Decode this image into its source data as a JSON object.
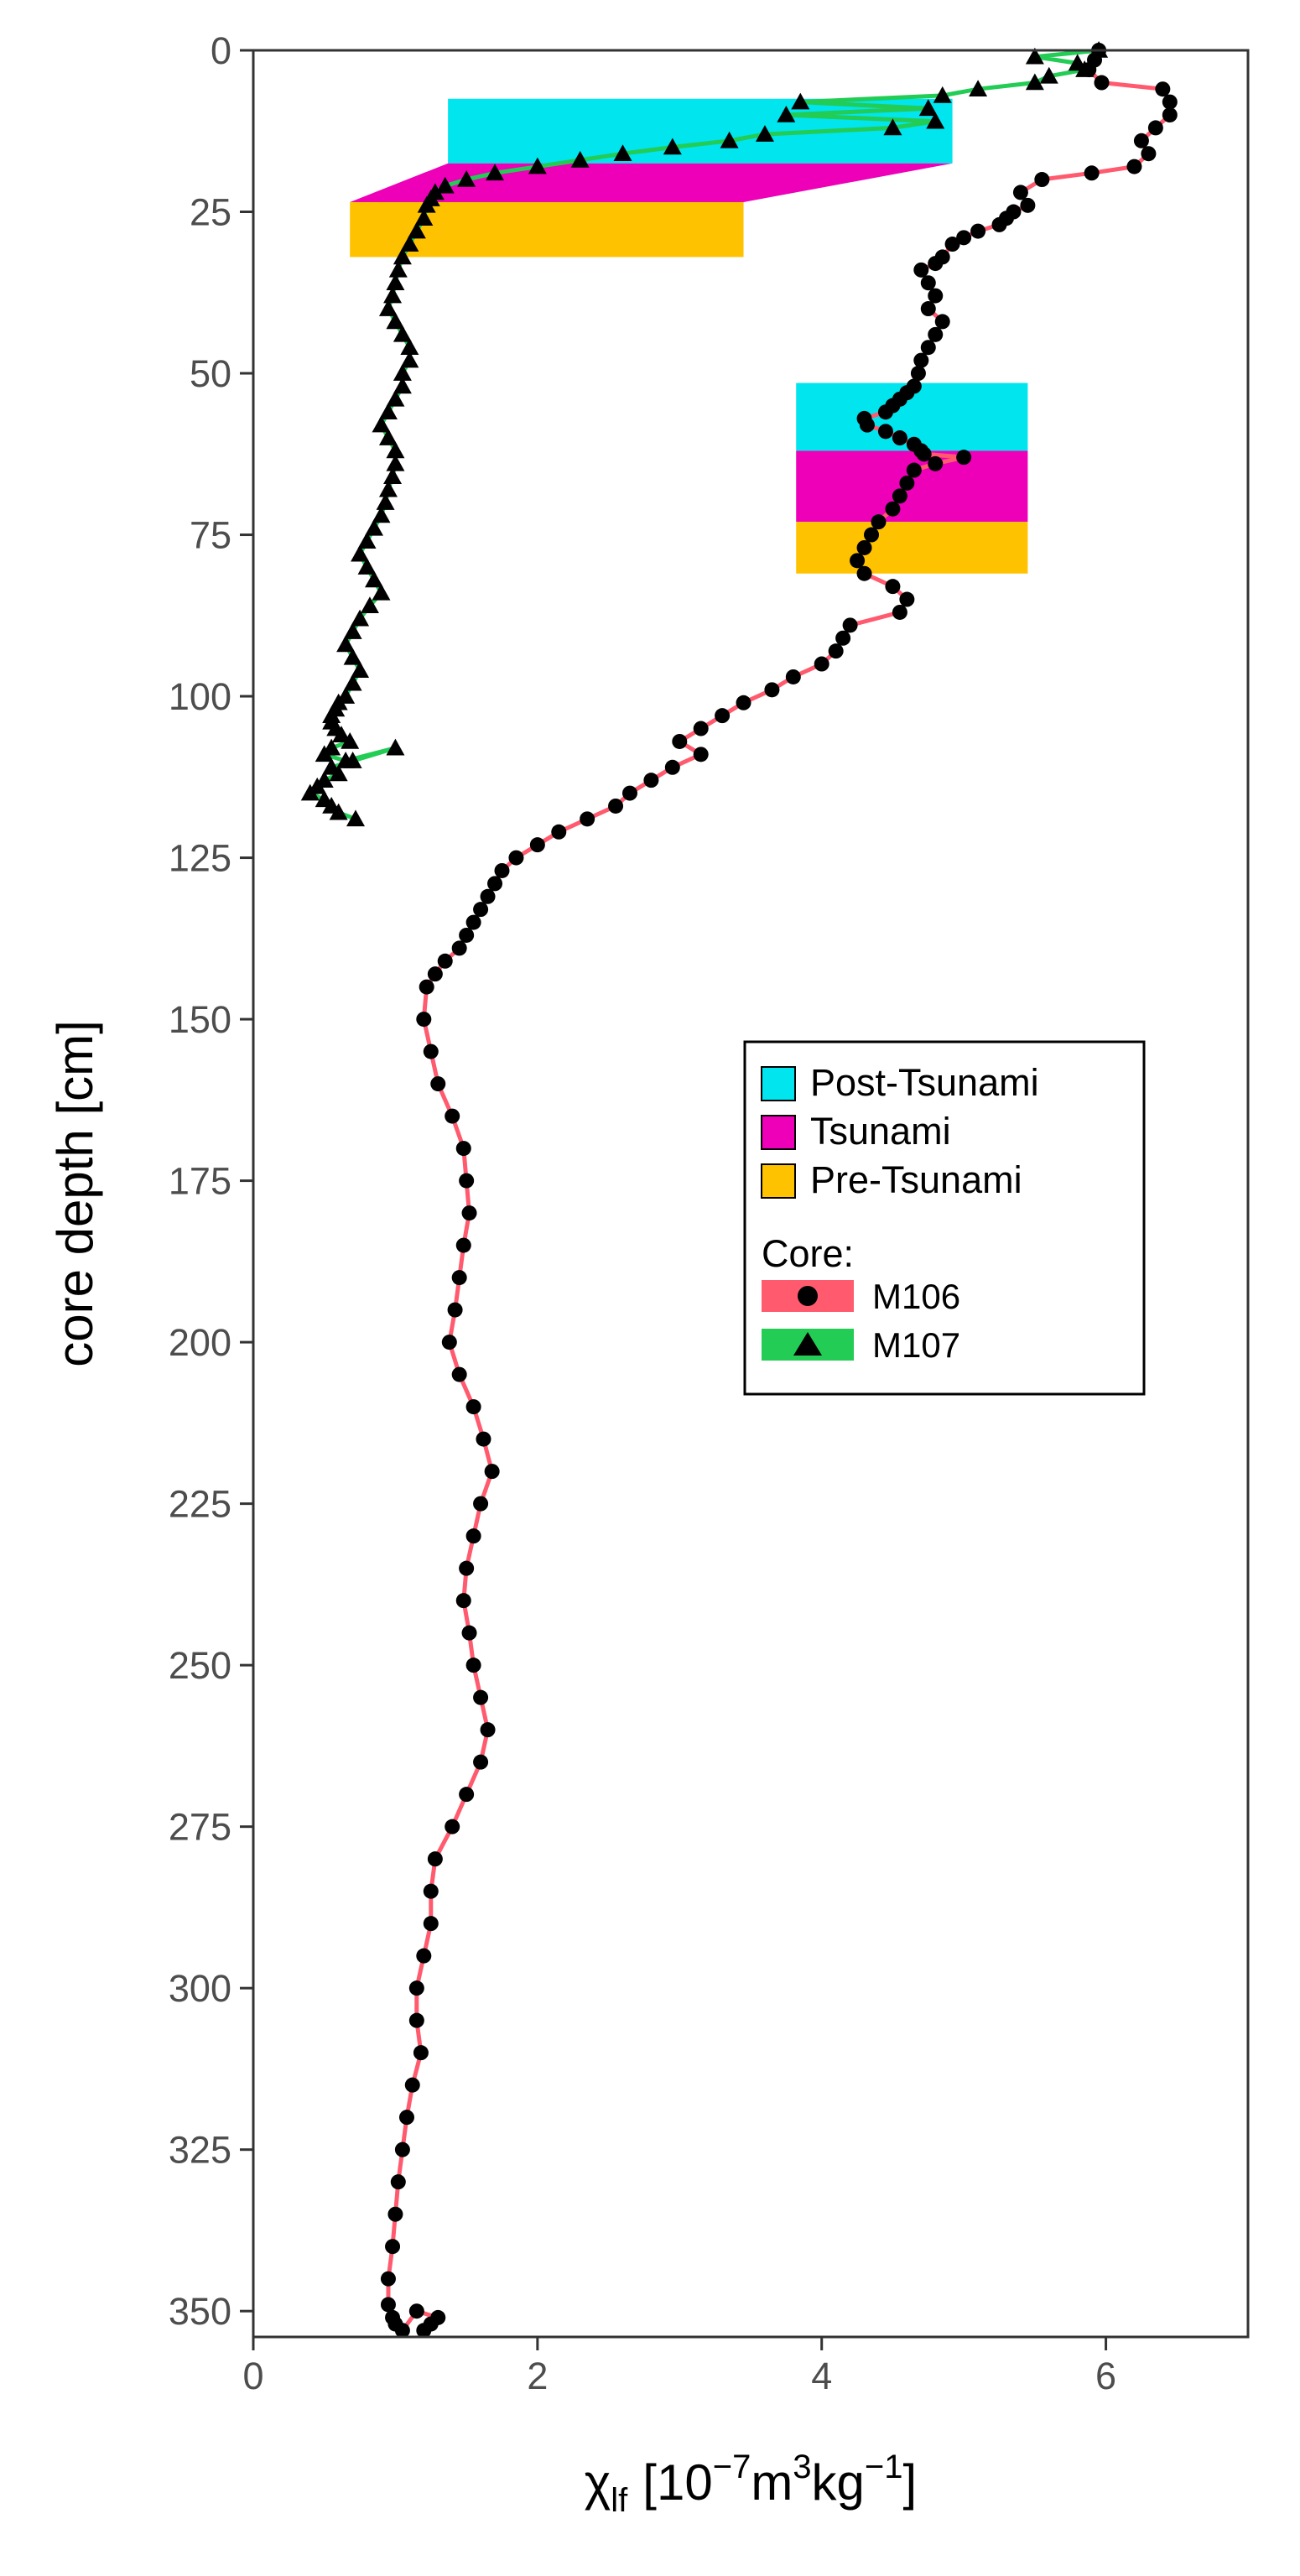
{
  "chart_data": {
    "type": "line",
    "title": "",
    "xlabel": "",
    "ylabel": "core depth [cm]",
    "xlim": [
      0,
      7
    ],
    "ylim": [
      354,
      0
    ],
    "y_reversed": true,
    "grid": false,
    "legend_position": "center-right",
    "xticks": [
      "0",
      "2",
      "4",
      "6"
    ],
    "yticks": [
      "0",
      "25",
      "50",
      "75",
      "100",
      "125",
      "150",
      "175",
      "200",
      "225",
      "250",
      "275",
      "300",
      "325",
      "350"
    ],
    "xaxis_label": {
      "symbol": "χ",
      "subscript": "lf",
      "bracket_open": "[",
      "mantissa": "10",
      "exponent": "−7",
      "unit1": "m",
      "unit1_exp": "3",
      "unit2": "kg",
      "unit2_exp": "−1",
      "bracket_close": "]"
    },
    "phase_colors": {
      "Post-Tsunami": "#00e5ee",
      "Tsunami": "#ee00b8",
      "Pre-Tsunami": "#ffc200"
    },
    "phase_bands": [
      {
        "core": "M107",
        "phase": "Post-Tsunami",
        "x": [
          1.37,
          4.92
        ],
        "y": [
          7.5,
          17.5
        ]
      },
      {
        "core": "M107",
        "phase": "Tsunami",
        "x_top": [
          1.37,
          4.92
        ],
        "x_bottom": [
          0.68,
          3.45
        ],
        "y": [
          17.5,
          23.5
        ]
      },
      {
        "core": "M107",
        "phase": "Pre-Tsunami",
        "x": [
          0.68,
          3.45
        ],
        "y": [
          23.5,
          32
        ]
      },
      {
        "core": "M106",
        "phase": "Post-Tsunami",
        "x": [
          3.82,
          5.45
        ],
        "y": [
          51.5,
          62
        ]
      },
      {
        "core": "M106",
        "phase": "Tsunami",
        "x": [
          3.82,
          5.45
        ],
        "y": [
          62,
          73
        ]
      },
      {
        "core": "M106",
        "phase": "Pre-Tsunami",
        "x": [
          3.82,
          5.45
        ],
        "y": [
          73,
          81
        ]
      }
    ],
    "legend": {
      "phase_items": [
        "Post-Tsunami",
        "Tsunami",
        "Pre-Tsunami"
      ],
      "core_title": "Core:",
      "core_items": [
        {
          "name": "M106",
          "line_color": "#ff5a6e",
          "marker": "circle"
        },
        {
          "name": "M107",
          "line_color": "#22cc55",
          "marker": "triangle"
        }
      ]
    },
    "series": [
      {
        "name": "M106",
        "marker": "circle",
        "line_color": "#ff5a6e",
        "x": [
          5.95,
          5.92,
          5.88,
          5.97,
          6.4,
          6.45,
          6.45,
          6.35,
          6.25,
          6.3,
          6.2,
          5.9,
          5.55,
          5.4,
          5.45,
          5.35,
          5.3,
          5.25,
          5.1,
          5.0,
          4.92,
          4.85,
          4.8,
          4.7,
          4.75,
          4.8,
          4.75,
          4.85,
          4.8,
          4.75,
          4.7,
          4.68,
          4.65,
          4.6,
          4.55,
          4.5,
          4.45,
          4.3,
          4.32,
          4.45,
          4.55,
          4.65,
          4.7,
          4.72,
          5.0,
          4.8,
          4.65,
          4.6,
          4.55,
          4.5,
          4.4,
          4.35,
          4.3,
          4.25,
          4.3,
          4.5,
          4.6,
          4.55,
          4.2,
          4.15,
          4.1,
          4.0,
          3.8,
          3.65,
          3.45,
          3.3,
          3.15,
          3.0,
          3.15,
          2.95,
          2.8,
          2.65,
          2.55,
          2.35,
          2.15,
          2.0,
          1.85,
          1.75,
          1.7,
          1.65,
          1.6,
          1.55,
          1.5,
          1.45,
          1.35,
          1.28,
          1.22,
          1.2,
          1.25,
          1.3,
          1.4,
          1.48,
          1.5,
          1.52,
          1.48,
          1.45,
          1.42,
          1.38,
          1.45,
          1.55,
          1.62,
          1.68,
          1.6,
          1.55,
          1.5,
          1.48,
          1.52,
          1.55,
          1.6,
          1.65,
          1.6,
          1.5,
          1.4,
          1.28,
          1.25,
          1.25,
          1.2,
          1.15,
          1.15,
          1.18,
          1.12,
          1.08,
          1.05,
          1.02,
          1.0,
          0.98,
          0.95,
          0.95,
          0.98,
          1.0,
          1.05,
          1.15,
          1.3,
          1.25,
          1.2
        ],
        "y": [
          0,
          1.5,
          3,
          5,
          6,
          8,
          10,
          12,
          14,
          16,
          18,
          19,
          20,
          22,
          24,
          25,
          26,
          27,
          28,
          29,
          30,
          32,
          33,
          34,
          36,
          38,
          40,
          42,
          44,
          46,
          48,
          50,
          52,
          53,
          54,
          55,
          56,
          57,
          58,
          59,
          60,
          61,
          62,
          62.5,
          63,
          64,
          65,
          67,
          69,
          71,
          73,
          75,
          77,
          79,
          81,
          83,
          85,
          87,
          89,
          91,
          93,
          95,
          97,
          99,
          101,
          103,
          105,
          107,
          109,
          111,
          113,
          115,
          117,
          119,
          121,
          123,
          125,
          127,
          129,
          131,
          133,
          135,
          137,
          139,
          141,
          143,
          145,
          150,
          155,
          160,
          165,
          170,
          175,
          180,
          185,
          190,
          195,
          200,
          205,
          210,
          215,
          220,
          225,
          230,
          235,
          240,
          245,
          250,
          255,
          260,
          265,
          270,
          275,
          280,
          285,
          290,
          295,
          300,
          305,
          310,
          315,
          320,
          325,
          330,
          335,
          340,
          345,
          349,
          351,
          352,
          353,
          350,
          351,
          352,
          353
        ]
      },
      {
        "name": "M107",
        "marker": "triangle",
        "line_color": "#22cc55",
        "x": [
          5.95,
          5.5,
          5.8,
          5.85,
          5.6,
          5.5,
          5.1,
          4.85,
          3.85,
          4.75,
          3.75,
          4.8,
          4.5,
          3.6,
          3.35,
          2.95,
          2.6,
          2.3,
          2.0,
          1.7,
          1.5,
          1.35,
          1.28,
          1.25,
          1.22,
          1.2,
          1.15,
          1.1,
          1.05,
          1.02,
          1.0,
          0.98,
          0.95,
          1.0,
          1.05,
          1.1,
          1.1,
          1.05,
          1.05,
          1.0,
          0.95,
          0.9,
          0.95,
          1.0,
          1.0,
          0.98,
          0.95,
          0.93,
          0.9,
          0.85,
          0.8,
          0.75,
          0.8,
          0.85,
          0.9,
          0.82,
          0.75,
          0.7,
          0.65,
          0.7,
          0.75,
          0.7,
          0.65,
          0.6,
          0.58,
          0.55,
          0.55,
          0.58,
          0.62,
          0.68,
          0.55,
          0.5,
          0.65,
          1.0,
          0.7,
          0.55,
          0.6,
          0.5,
          0.45,
          0.4,
          0.5,
          0.55,
          0.6,
          0.72
        ],
        "y": [
          0,
          1,
          2,
          3,
          4,
          5,
          6,
          7,
          8,
          9,
          10,
          11,
          12,
          13,
          14,
          15,
          16,
          17,
          18,
          19,
          20,
          21,
          22,
          23,
          24,
          26,
          28,
          30,
          32,
          34,
          36,
          38,
          40,
          42,
          44,
          46,
          48,
          50,
          52,
          54,
          56,
          58,
          60,
          62,
          64,
          66,
          68,
          70,
          72,
          74,
          76,
          78,
          80,
          82,
          84,
          86,
          88,
          90,
          92,
          94,
          96,
          98,
          100,
          101,
          102,
          103,
          104,
          105,
          106,
          107,
          108,
          109,
          110,
          108,
          110,
          111,
          112,
          113,
          114,
          115,
          116,
          117,
          118,
          119
        ]
      }
    ]
  }
}
